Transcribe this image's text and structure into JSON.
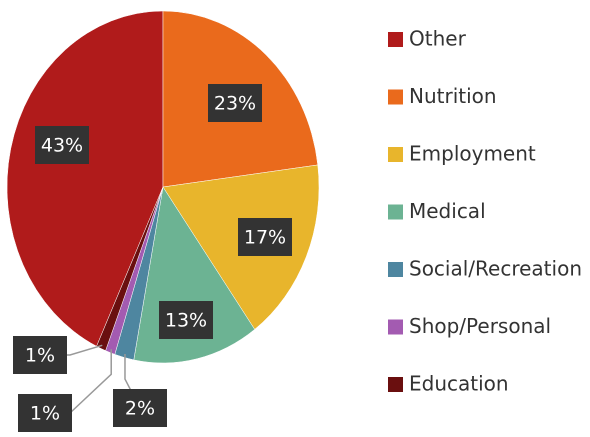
{
  "chart_data": {
    "type": "pie",
    "categories": [
      "Other",
      "Nutrition",
      "Employment",
      "Medical",
      "Social/Recreation",
      "Shop/Personal",
      "Education"
    ],
    "values": [
      43,
      23,
      17,
      13,
      2,
      1,
      1
    ],
    "value_labels": [
      "43%",
      "23%",
      "17%",
      "13%",
      "2%",
      "1%",
      "1%"
    ],
    "colors": [
      "#b01b1b",
      "#ea6a1c",
      "#e8b52c",
      "#6cb393",
      "#4e86a0",
      "#a35bb1",
      "#6a0f0f"
    ],
    "legend": "right"
  }
}
